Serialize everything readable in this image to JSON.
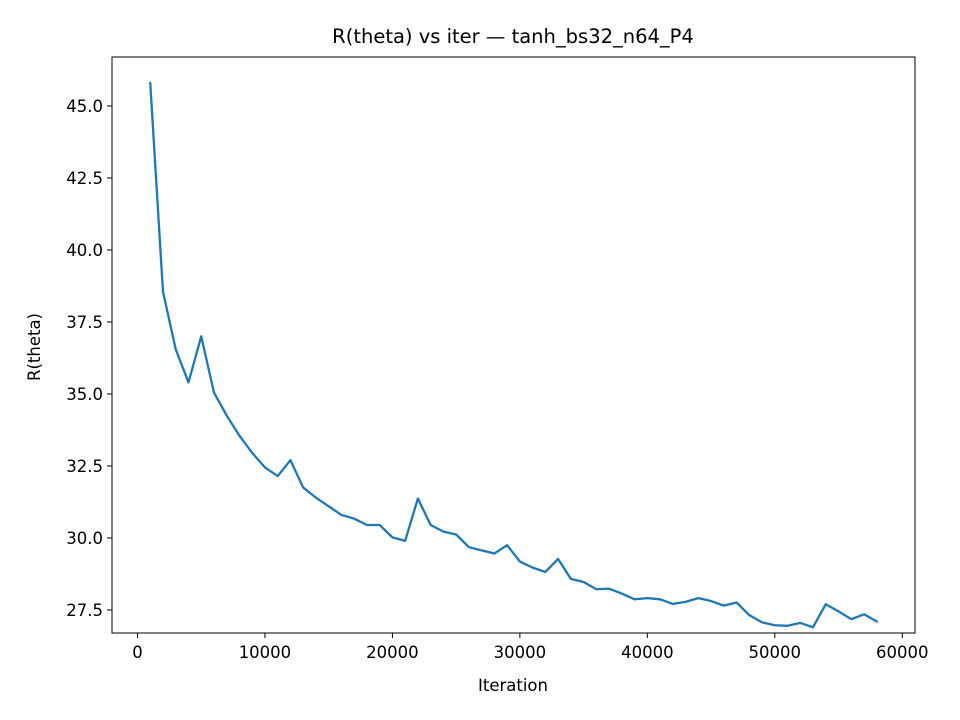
{
  "chart_data": {
    "type": "line",
    "title": "R(theta) vs iter — tanh_bs32_n64_P4",
    "xlabel": "Iteration",
    "ylabel": "R(theta)",
    "xlim": [
      -2000,
      61000
    ],
    "ylim": [
      26.7,
      46.7
    ],
    "xticks": [
      0,
      10000,
      20000,
      30000,
      40000,
      50000,
      60000
    ],
    "xtick_labels": [
      "0",
      "10000",
      "20000",
      "30000",
      "40000",
      "50000",
      "60000"
    ],
    "yticks": [
      27.5,
      30.0,
      32.5,
      35.0,
      37.5,
      40.0,
      42.5,
      45.0
    ],
    "ytick_labels": [
      "27.5",
      "30.0",
      "32.5",
      "35.0",
      "37.5",
      "40.0",
      "42.5",
      "45.0"
    ],
    "grid": false,
    "legend": "none",
    "series": [
      {
        "color": "#1f77b4",
        "x": [
          1000,
          2000,
          3000,
          4000,
          5000,
          6000,
          7000,
          8000,
          9000,
          10000,
          11000,
          12000,
          13000,
          14000,
          15000,
          16000,
          17000,
          18000,
          19000,
          20000,
          21000,
          22000,
          23000,
          24000,
          25000,
          26000,
          27000,
          28000,
          29000,
          30000,
          31000,
          32000,
          33000,
          34000,
          35000,
          36000,
          37000,
          38000,
          39000,
          40000,
          41000,
          42000,
          43000,
          44000,
          45000,
          46000,
          47000,
          48000,
          49000,
          50000,
          51000,
          52000,
          53000,
          54000,
          55000,
          56000,
          57000,
          58000
        ],
        "y": [
          45.8,
          38.55,
          36.55,
          35.4,
          37.0,
          35.05,
          34.25,
          33.55,
          32.95,
          32.45,
          32.15,
          32.7,
          31.75,
          31.4,
          31.1,
          30.8,
          30.67,
          30.45,
          30.45,
          30.02,
          29.9,
          31.37,
          30.45,
          30.22,
          30.12,
          29.68,
          29.57,
          29.46,
          29.75,
          29.18,
          28.97,
          28.82,
          29.27,
          28.58,
          28.47,
          28.22,
          28.24,
          28.07,
          27.87,
          27.91,
          27.87,
          27.71,
          27.78,
          27.91,
          27.81,
          27.65,
          27.76,
          27.32,
          27.07,
          26.97,
          26.95,
          27.05,
          26.9,
          27.7,
          27.45,
          27.18,
          27.35,
          27.1
        ]
      }
    ]
  }
}
